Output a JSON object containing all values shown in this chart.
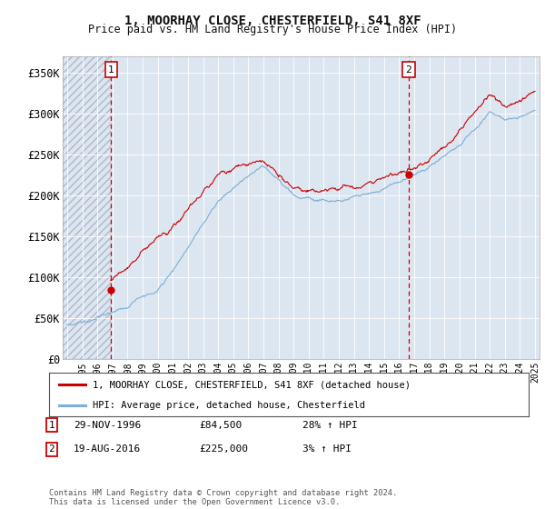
{
  "title": "1, MOORHAY CLOSE, CHESTERFIELD, S41 8XF",
  "subtitle": "Price paid vs. HM Land Registry's House Price Index (HPI)",
  "ylim": [
    0,
    370000
  ],
  "yticks": [
    0,
    50000,
    100000,
    150000,
    200000,
    250000,
    300000,
    350000
  ],
  "ytick_labels": [
    "£0",
    "£50K",
    "£100K",
    "£150K",
    "£200K",
    "£250K",
    "£300K",
    "£350K"
  ],
  "background_color": "#ffffff",
  "plot_bg_color": "#dce6f1",
  "grid_color": "#ffffff",
  "sale1_x": 1996.91,
  "sale1_y": 84500,
  "sale2_x": 2016.63,
  "sale2_y": 225000,
  "legend_line1_label": "1, MOORHAY CLOSE, CHESTERFIELD, S41 8XF (detached house)",
  "legend_line2_label": "HPI: Average price, detached house, Chesterfield",
  "table_rows": [
    {
      "num": "1",
      "date": "29-NOV-1996",
      "price": "£84,500",
      "hpi": "28% ↑ HPI"
    },
    {
      "num": "2",
      "date": "19-AUG-2016",
      "price": "£225,000",
      "hpi": "3% ↑ HPI"
    }
  ],
  "footer": "Contains HM Land Registry data © Crown copyright and database right 2024.\nThis data is licensed under the Open Government Licence v3.0.",
  "line1_color": "#cc0000",
  "line2_color": "#7bafd4",
  "marker_color": "#cc0000",
  "xmin": 1993.7,
  "xmax": 2025.3
}
